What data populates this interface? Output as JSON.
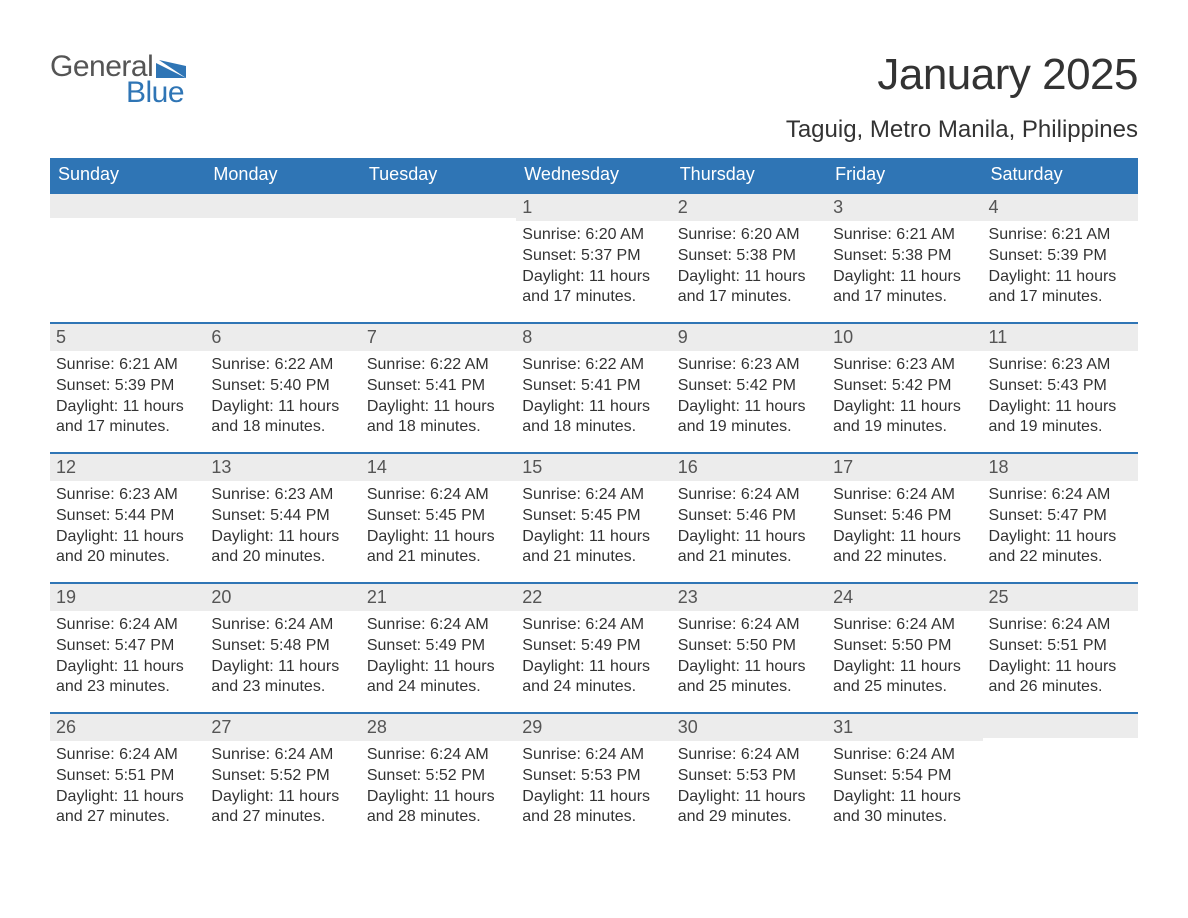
{
  "logo": {
    "text_general": "General",
    "text_blue": "Blue",
    "mark_color": "#2f75b5"
  },
  "title": "January 2025",
  "location": "Taguig, Metro Manila, Philippines",
  "colors": {
    "header_bg": "#2f75b5",
    "header_text": "#ffffff",
    "strip_bg": "#ececec",
    "border": "#2f75b5",
    "body_text": "#333333",
    "page_bg": "#ffffff"
  },
  "weekdays": [
    "Sunday",
    "Monday",
    "Tuesday",
    "Wednesday",
    "Thursday",
    "Friday",
    "Saturday"
  ],
  "weeks": [
    [
      {
        "day": "",
        "sunrise": "",
        "sunset": "",
        "daylight": ""
      },
      {
        "day": "",
        "sunrise": "",
        "sunset": "",
        "daylight": ""
      },
      {
        "day": "",
        "sunrise": "",
        "sunset": "",
        "daylight": ""
      },
      {
        "day": "1",
        "sunrise": "Sunrise: 6:20 AM",
        "sunset": "Sunset: 5:37 PM",
        "daylight": "Daylight: 11 hours and 17 minutes."
      },
      {
        "day": "2",
        "sunrise": "Sunrise: 6:20 AM",
        "sunset": "Sunset: 5:38 PM",
        "daylight": "Daylight: 11 hours and 17 minutes."
      },
      {
        "day": "3",
        "sunrise": "Sunrise: 6:21 AM",
        "sunset": "Sunset: 5:38 PM",
        "daylight": "Daylight: 11 hours and 17 minutes."
      },
      {
        "day": "4",
        "sunrise": "Sunrise: 6:21 AM",
        "sunset": "Sunset: 5:39 PM",
        "daylight": "Daylight: 11 hours and 17 minutes."
      }
    ],
    [
      {
        "day": "5",
        "sunrise": "Sunrise: 6:21 AM",
        "sunset": "Sunset: 5:39 PM",
        "daylight": "Daylight: 11 hours and 17 minutes."
      },
      {
        "day": "6",
        "sunrise": "Sunrise: 6:22 AM",
        "sunset": "Sunset: 5:40 PM",
        "daylight": "Daylight: 11 hours and 18 minutes."
      },
      {
        "day": "7",
        "sunrise": "Sunrise: 6:22 AM",
        "sunset": "Sunset: 5:41 PM",
        "daylight": "Daylight: 11 hours and 18 minutes."
      },
      {
        "day": "8",
        "sunrise": "Sunrise: 6:22 AM",
        "sunset": "Sunset: 5:41 PM",
        "daylight": "Daylight: 11 hours and 18 minutes."
      },
      {
        "day": "9",
        "sunrise": "Sunrise: 6:23 AM",
        "sunset": "Sunset: 5:42 PM",
        "daylight": "Daylight: 11 hours and 19 minutes."
      },
      {
        "day": "10",
        "sunrise": "Sunrise: 6:23 AM",
        "sunset": "Sunset: 5:42 PM",
        "daylight": "Daylight: 11 hours and 19 minutes."
      },
      {
        "day": "11",
        "sunrise": "Sunrise: 6:23 AM",
        "sunset": "Sunset: 5:43 PM",
        "daylight": "Daylight: 11 hours and 19 minutes."
      }
    ],
    [
      {
        "day": "12",
        "sunrise": "Sunrise: 6:23 AM",
        "sunset": "Sunset: 5:44 PM",
        "daylight": "Daylight: 11 hours and 20 minutes."
      },
      {
        "day": "13",
        "sunrise": "Sunrise: 6:23 AM",
        "sunset": "Sunset: 5:44 PM",
        "daylight": "Daylight: 11 hours and 20 minutes."
      },
      {
        "day": "14",
        "sunrise": "Sunrise: 6:24 AM",
        "sunset": "Sunset: 5:45 PM",
        "daylight": "Daylight: 11 hours and 21 minutes."
      },
      {
        "day": "15",
        "sunrise": "Sunrise: 6:24 AM",
        "sunset": "Sunset: 5:45 PM",
        "daylight": "Daylight: 11 hours and 21 minutes."
      },
      {
        "day": "16",
        "sunrise": "Sunrise: 6:24 AM",
        "sunset": "Sunset: 5:46 PM",
        "daylight": "Daylight: 11 hours and 21 minutes."
      },
      {
        "day": "17",
        "sunrise": "Sunrise: 6:24 AM",
        "sunset": "Sunset: 5:46 PM",
        "daylight": "Daylight: 11 hours and 22 minutes."
      },
      {
        "day": "18",
        "sunrise": "Sunrise: 6:24 AM",
        "sunset": "Sunset: 5:47 PM",
        "daylight": "Daylight: 11 hours and 22 minutes."
      }
    ],
    [
      {
        "day": "19",
        "sunrise": "Sunrise: 6:24 AM",
        "sunset": "Sunset: 5:47 PM",
        "daylight": "Daylight: 11 hours and 23 minutes."
      },
      {
        "day": "20",
        "sunrise": "Sunrise: 6:24 AM",
        "sunset": "Sunset: 5:48 PM",
        "daylight": "Daylight: 11 hours and 23 minutes."
      },
      {
        "day": "21",
        "sunrise": "Sunrise: 6:24 AM",
        "sunset": "Sunset: 5:49 PM",
        "daylight": "Daylight: 11 hours and 24 minutes."
      },
      {
        "day": "22",
        "sunrise": "Sunrise: 6:24 AM",
        "sunset": "Sunset: 5:49 PM",
        "daylight": "Daylight: 11 hours and 24 minutes."
      },
      {
        "day": "23",
        "sunrise": "Sunrise: 6:24 AM",
        "sunset": "Sunset: 5:50 PM",
        "daylight": "Daylight: 11 hours and 25 minutes."
      },
      {
        "day": "24",
        "sunrise": "Sunrise: 6:24 AM",
        "sunset": "Sunset: 5:50 PM",
        "daylight": "Daylight: 11 hours and 25 minutes."
      },
      {
        "day": "25",
        "sunrise": "Sunrise: 6:24 AM",
        "sunset": "Sunset: 5:51 PM",
        "daylight": "Daylight: 11 hours and 26 minutes."
      }
    ],
    [
      {
        "day": "26",
        "sunrise": "Sunrise: 6:24 AM",
        "sunset": "Sunset: 5:51 PM",
        "daylight": "Daylight: 11 hours and 27 minutes."
      },
      {
        "day": "27",
        "sunrise": "Sunrise: 6:24 AM",
        "sunset": "Sunset: 5:52 PM",
        "daylight": "Daylight: 11 hours and 27 minutes."
      },
      {
        "day": "28",
        "sunrise": "Sunrise: 6:24 AM",
        "sunset": "Sunset: 5:52 PM",
        "daylight": "Daylight: 11 hours and 28 minutes."
      },
      {
        "day": "29",
        "sunrise": "Sunrise: 6:24 AM",
        "sunset": "Sunset: 5:53 PM",
        "daylight": "Daylight: 11 hours and 28 minutes."
      },
      {
        "day": "30",
        "sunrise": "Sunrise: 6:24 AM",
        "sunset": "Sunset: 5:53 PM",
        "daylight": "Daylight: 11 hours and 29 minutes."
      },
      {
        "day": "31",
        "sunrise": "Sunrise: 6:24 AM",
        "sunset": "Sunset: 5:54 PM",
        "daylight": "Daylight: 11 hours and 30 minutes."
      },
      {
        "day": "",
        "sunrise": "",
        "sunset": "",
        "daylight": ""
      }
    ]
  ]
}
